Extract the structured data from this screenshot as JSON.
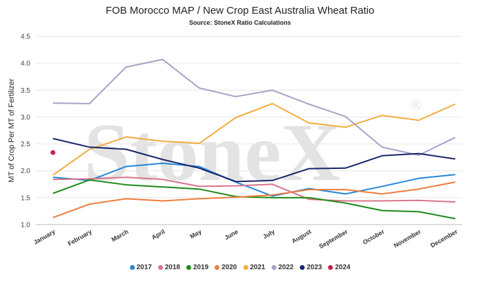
{
  "chart_data": {
    "type": "line",
    "title": "FOB Morocco MAP / New Crop East Australia Wheat Ratio",
    "subtitle": "Source: StoneX Ratio Calculations",
    "ylabel": "MT of Crop Per MT of Fertilizer",
    "xlabel": "",
    "watermark": "StoneX",
    "watermark_mark": "®",
    "ylim": [
      1.0,
      4.5
    ],
    "yticks": [
      "1.0",
      "1.5",
      "2.0",
      "2.5",
      "3.0",
      "3.5",
      "4.0",
      "4.5"
    ],
    "grid": true,
    "legend_position": "bottom",
    "categories": [
      "January",
      "February",
      "March",
      "April",
      "May",
      "June",
      "July",
      "August",
      "September",
      "October",
      "November",
      "December"
    ],
    "series": [
      {
        "name": "2017",
        "color": "#2386d8",
        "values": [
          1.88,
          1.82,
          2.08,
          2.14,
          2.08,
          1.79,
          1.53,
          1.67,
          1.57,
          1.71,
          1.86,
          1.93
        ]
      },
      {
        "name": "2018",
        "color": "#d9738a",
        "values": [
          1.84,
          1.85,
          1.88,
          1.84,
          1.71,
          1.72,
          1.75,
          1.47,
          1.44,
          1.44,
          1.45,
          1.42
        ]
      },
      {
        "name": "2019",
        "color": "#1a8a17",
        "values": [
          1.58,
          1.83,
          1.74,
          1.7,
          1.66,
          1.52,
          1.5,
          1.5,
          1.4,
          1.26,
          1.24,
          1.11
        ]
      },
      {
        "name": "2020",
        "color": "#ee7c3b",
        "values": [
          1.13,
          1.38,
          1.48,
          1.44,
          1.48,
          1.51,
          1.55,
          1.65,
          1.65,
          1.57,
          1.66,
          1.79
        ]
      },
      {
        "name": "2021",
        "color": "#f2ac3c",
        "values": [
          1.92,
          2.4,
          2.63,
          2.55,
          2.51,
          2.99,
          3.25,
          2.89,
          2.81,
          3.03,
          2.94,
          3.24
        ]
      },
      {
        "name": "2022",
        "color": "#a3a3c7",
        "values": [
          3.26,
          3.25,
          3.93,
          4.07,
          3.54,
          3.38,
          3.5,
          3.24,
          3.01,
          2.44,
          2.29,
          2.62
        ]
      },
      {
        "name": "2023",
        "color": "#17236b",
        "values": [
          2.6,
          2.44,
          2.4,
          2.21,
          2.05,
          1.8,
          1.82,
          2.04,
          2.05,
          2.28,
          2.32,
          2.22
        ]
      },
      {
        "name": "2024",
        "color": "#cc1f4a",
        "values": [
          2.34,
          null,
          null,
          null,
          null,
          null,
          null,
          null,
          null,
          null,
          null,
          null
        ]
      }
    ]
  }
}
